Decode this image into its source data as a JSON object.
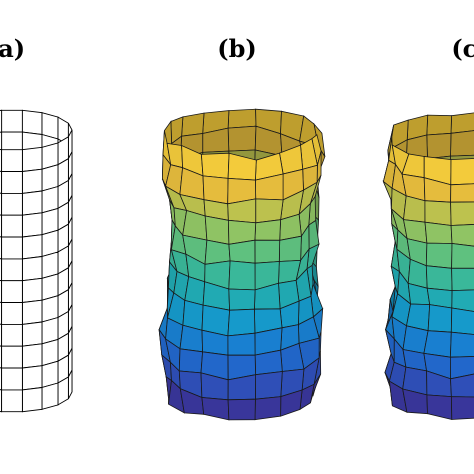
{
  "panels": [
    {
      "id": "a",
      "label": "(a)",
      "style": "wireframe",
      "edge_color": "#000000",
      "face_color": "#ffffff",
      "rows": 12,
      "cols": 18,
      "deformed": false
    },
    {
      "id": "b",
      "label": "(b)",
      "style": "shaded",
      "edge_color": "#1a1a1a",
      "rows": 12,
      "cols": 18,
      "deformed": true
    },
    {
      "id": "c",
      "label": "(c)",
      "style": "shaded",
      "edge_color": "#1a1a1a",
      "rows": 12,
      "cols": 18,
      "deformed": true
    }
  ],
  "colormap": [
    "#3e2a8c",
    "#2f4fb8",
    "#1b73d4",
    "#169acb",
    "#27b3a8",
    "#5fc17f",
    "#a8c557",
    "#e6bd3d",
    "#f9d23a"
  ]
}
